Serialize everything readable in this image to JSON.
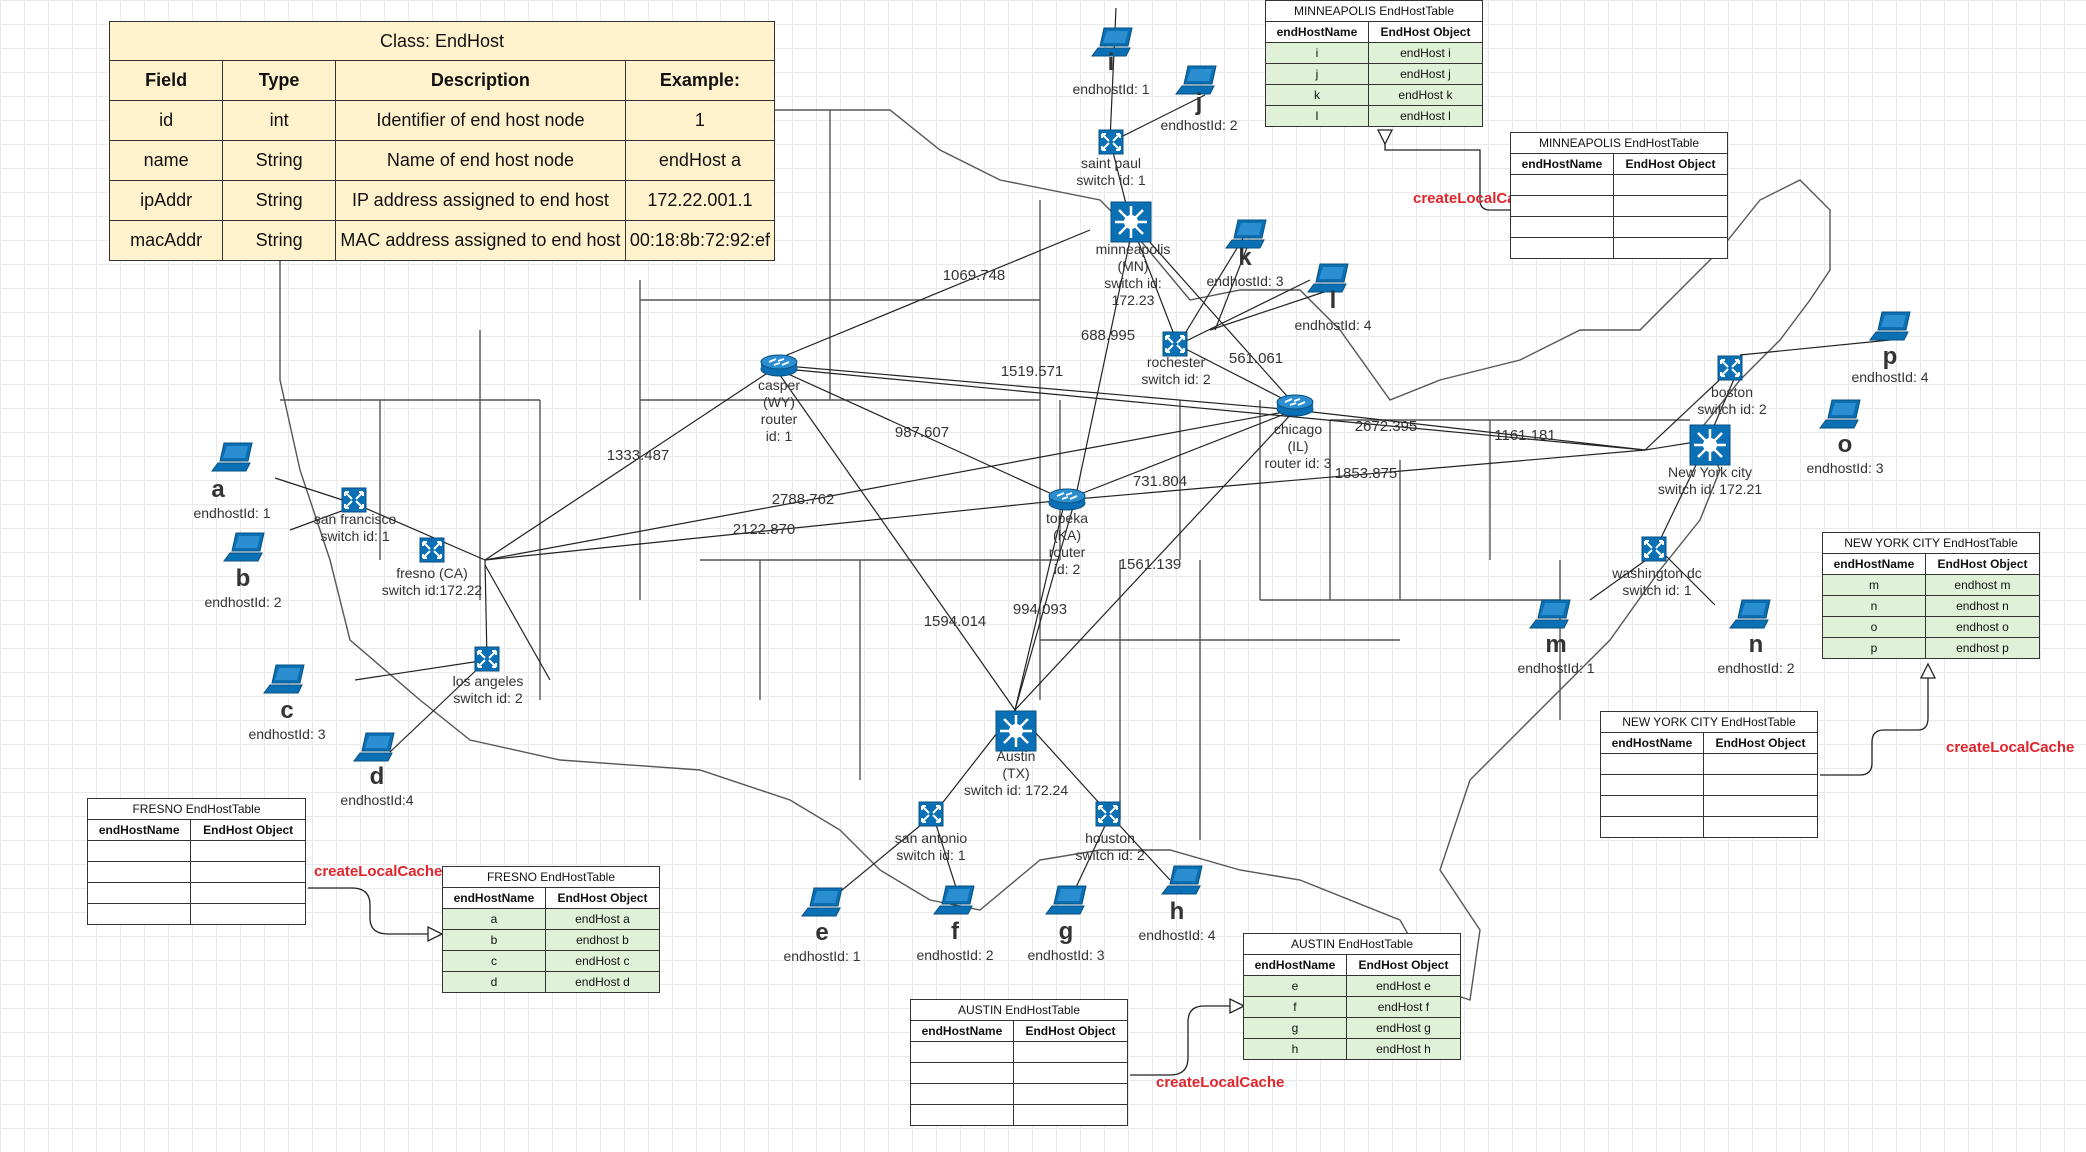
{
  "class_table": {
    "title": "Class: EndHost",
    "headers": [
      "Field",
      "Type",
      "Description",
      "Example:"
    ],
    "rows": [
      [
        "id",
        "int",
        "Identifier of  end host node",
        "1"
      ],
      [
        "name",
        "String",
        "Name of  end host node",
        "endHost a"
      ],
      [
        "ipAddr",
        "String",
        "IP address assigned to  end host",
        "172.22.001.1"
      ],
      [
        "macAddr",
        "String",
        "MAC address assigned to end host",
        "00:18:8b:72:92:ef"
      ]
    ]
  },
  "tables": {
    "minneapolis_full": {
      "title": "MINNEAPOLIS EndHostTable",
      "col1": "endHostName",
      "col2": "EndHost Object",
      "rows": [
        [
          "i",
          "endHost i"
        ],
        [
          "j",
          "endHost j"
        ],
        [
          "k",
          "endHost k"
        ],
        [
          "l",
          "endHost l"
        ]
      ]
    },
    "minneapolis_empty": {
      "title": "MINNEAPOLIS EndHostTable",
      "col1": "endHostName",
      "col2": "EndHost Object"
    },
    "nyc_full": {
      "title": "NEW YORK CITY EndHostTable",
      "col1": "endHostName",
      "col2": "EndHost Object",
      "rows": [
        [
          "m",
          "endhost m"
        ],
        [
          "n",
          "endhost n"
        ],
        [
          "o",
          "endhost o"
        ],
        [
          "p",
          "endhost p"
        ]
      ]
    },
    "nyc_empty": {
      "title": "NEW YORK CITY EndHostTable",
      "col1": "endHostName",
      "col2": "EndHost Object"
    },
    "fresno_empty": {
      "title": "FRESNO EndHostTable",
      "col1": "endHostName",
      "col2": "EndHost Object"
    },
    "fresno_full": {
      "title": "FRESNO EndHostTable",
      "col1": "endHostName",
      "col2": "EndHost Object",
      "rows": [
        [
          "a",
          "endHost a"
        ],
        [
          "b",
          "endhost b"
        ],
        [
          "c",
          "endHost c"
        ],
        [
          "d",
          "endHost d"
        ]
      ]
    },
    "austin_full": {
      "title": "AUSTIN EndHostTable",
      "col1": "endHostName",
      "col2": "EndHost Object",
      "rows": [
        [
          "e",
          "endHost e"
        ],
        [
          "f",
          "endHost f"
        ],
        [
          "g",
          "endHost g"
        ],
        [
          "h",
          "endHost h"
        ]
      ]
    },
    "austin_empty": {
      "title": "AUSTIN EndHostTable",
      "col1": "endHostName",
      "col2": "EndHost Object"
    }
  },
  "cache_label": "createLocalCache",
  "nodes": {
    "casper": [
      "casper",
      "(WY)",
      "router",
      "id: 1"
    ],
    "topeka": [
      "topeka",
      "(KA)",
      "router",
      "id: 2"
    ],
    "chicago": [
      "chicago",
      "(IL)",
      "router id: 3"
    ],
    "minneapolis": [
      "minneapolis",
      "(MN)",
      "switch id:",
      "172.23"
    ],
    "saint_paul": [
      "saint paul",
      "switch id: 1"
    ],
    "rochester": [
      "rochester",
      "switch id: 2"
    ],
    "boston": [
      "boston",
      "switch id: 2"
    ],
    "nyc": [
      "New York city",
      "switch id: 172.21"
    ],
    "washington": [
      "washington dc",
      "switch id: 1"
    ],
    "fresno": [
      "fresno (CA)",
      "switch id:172.22"
    ],
    "san_francisco": [
      "san francisco",
      "switch id: 1"
    ],
    "los_angeles": [
      "los angeles",
      "switch id: 2"
    ],
    "austin": [
      "Austin",
      "(TX)",
      "switch id: 172.24"
    ],
    "san_antonio": [
      "san antonio",
      "switch id: 1"
    ],
    "houston": [
      "houston",
      "switch id: 2"
    ]
  },
  "hosts": {
    "a": [
      "a",
      "endhostId: 1"
    ],
    "b": [
      "b",
      "endhostId: 2"
    ],
    "c": [
      "c",
      "endhostId: 3"
    ],
    "d": [
      "d",
      "endhostId:4"
    ],
    "e": [
      "e",
      "endhostId: 1"
    ],
    "f": [
      "f",
      "endhostId: 2"
    ],
    "g": [
      "g",
      "endhostId: 3"
    ],
    "h": [
      "h",
      "endhostId: 4"
    ],
    "i": [
      "i",
      "endhostId: 1"
    ],
    "j": [
      "j",
      "endhostId: 2"
    ],
    "k": [
      "k",
      "endhostId: 3"
    ],
    "l": [
      "l",
      "endhostId: 4"
    ],
    "m": [
      "m",
      "endhostId: 1"
    ],
    "n": [
      "n",
      "endhostId: 2"
    ],
    "o": [
      "o",
      "endhostId: 3"
    ],
    "p": [
      "p",
      "endhostId: 4"
    ]
  },
  "distances": {
    "d1069": "1069.748",
    "d688": "688.995",
    "d1519": "1519.571",
    "d561": "561.061",
    "d2672": "2672.395",
    "d1161": "1161.181",
    "d1853": "1853.875",
    "d987": "987.607",
    "d731": "731.804",
    "d1333": "1333.487",
    "d2788": "2788.762",
    "d2122": "2122.870",
    "d1561": "1561.139",
    "d994": "994.093",
    "d1594": "1594.014"
  },
  "colors": {
    "device": "#0a70b5",
    "cache_label": "#e0242b",
    "class_table_bg": "#fff2cc",
    "green_table_bg": "#dff2d8"
  }
}
